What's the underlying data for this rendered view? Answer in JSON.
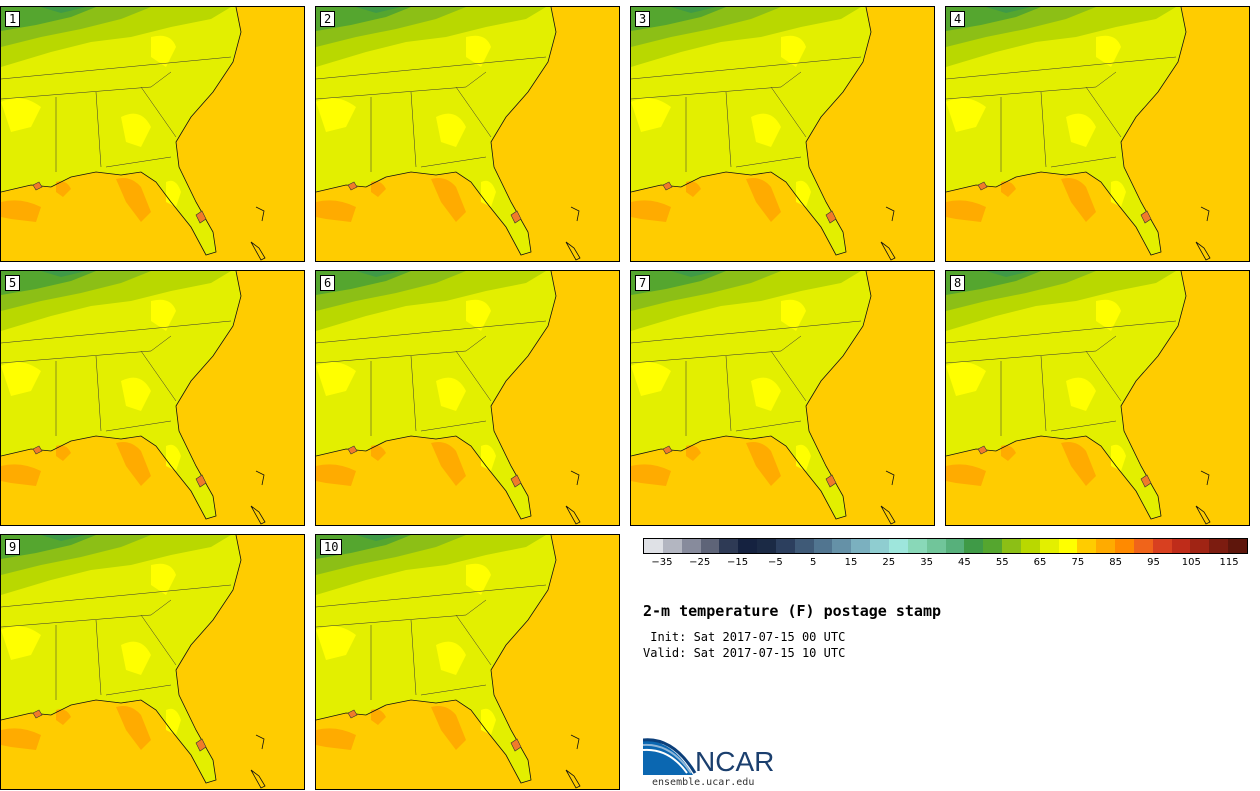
{
  "panels": [
    {
      "label": "1"
    },
    {
      "label": "2"
    },
    {
      "label": "3"
    },
    {
      "label": "4"
    },
    {
      "label": "5"
    },
    {
      "label": "6"
    },
    {
      "label": "7"
    },
    {
      "label": "8"
    },
    {
      "label": "9"
    },
    {
      "label": "10"
    }
  ],
  "colorbar": {
    "colors": [
      "#dfe1e6",
      "#b3b6c1",
      "#878b9c",
      "#5e6478",
      "#2e3a55",
      "#152240",
      "#1b2a45",
      "#2c3f5e",
      "#3f5a77",
      "#517590",
      "#6591a7",
      "#7bb0bf",
      "#8fcdd0",
      "#9ee6dc",
      "#89d8b8",
      "#71c59a",
      "#57b07b",
      "#3f9a47",
      "#55a62f",
      "#8cbf16",
      "#b9d800",
      "#e3ef00",
      "#ffff00",
      "#ffcc00",
      "#ffab00",
      "#ff8a00",
      "#f0641a",
      "#d84020",
      "#bf2c1a",
      "#a02414",
      "#7c1c10",
      "#5e160c"
    ],
    "tick_labels": [
      "−35",
      "−25",
      "−15",
      "−5",
      "5",
      "15",
      "25",
      "35",
      "45",
      "55",
      "65",
      "75",
      "85",
      "95",
      "105",
      "115"
    ]
  },
  "title": "2-m temperature (F) postage stamp",
  "init": " Init: Sat 2017-07-15 00 UTC",
  "valid": "Valid: Sat 2017-07-15 10 UTC",
  "logo": {
    "text": "NCAR",
    "url": "ensemble.ucar.edu"
  }
}
